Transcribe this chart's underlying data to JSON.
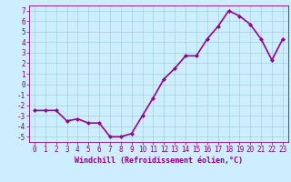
{
  "x": [
    0,
    1,
    2,
    3,
    4,
    5,
    6,
    7,
    8,
    9,
    10,
    11,
    12,
    13,
    14,
    15,
    16,
    17,
    18,
    19,
    20,
    21,
    22,
    23
  ],
  "y": [
    -2.5,
    -2.5,
    -2.5,
    -3.5,
    -3.3,
    -3.7,
    -3.7,
    -5.0,
    -5.0,
    -4.7,
    -3.0,
    -1.3,
    0.5,
    1.5,
    2.7,
    2.7,
    4.3,
    5.5,
    7.0,
    6.5,
    5.7,
    4.3,
    2.3,
    4.3
  ],
  "line_color": "#990099",
  "marker": "D",
  "marker_size": 2,
  "bg_color": "#cceeff",
  "grid_color": "#99cccc",
  "xlabel": "Windchill (Refroidissement éolien,°C)",
  "ylabel": "",
  "ylim": [
    -5.5,
    7.5
  ],
  "xlim": [
    -0.5,
    23.5
  ],
  "yticks": [
    -5,
    -4,
    -3,
    -2,
    -1,
    0,
    1,
    2,
    3,
    4,
    5,
    6,
    7
  ],
  "xticks": [
    0,
    1,
    2,
    3,
    4,
    5,
    6,
    7,
    8,
    9,
    10,
    11,
    12,
    13,
    14,
    15,
    16,
    17,
    18,
    19,
    20,
    21,
    22,
    23
  ],
  "tick_color": "#880088",
  "label_color": "#880088",
  "line_width": 1.2,
  "font_size": 5.5,
  "xlabel_fontsize": 6.0
}
